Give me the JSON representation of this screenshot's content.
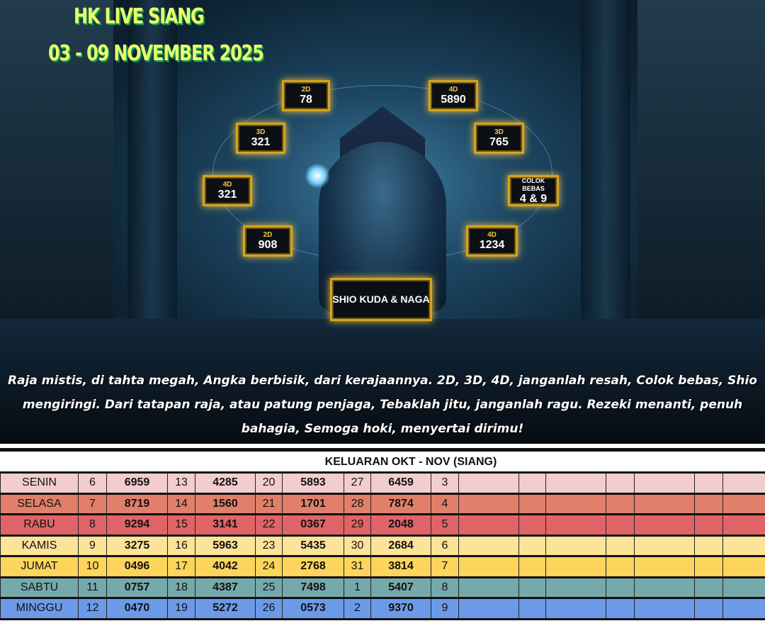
{
  "poster": {
    "title": "HK LIVE SIANG",
    "date_range": "03 - 09 NOVEMBER 2025",
    "predictions": [
      {
        "label": "2D",
        "value": "78"
      },
      {
        "label": "4D",
        "value": "5890"
      },
      {
        "label": "3D",
        "value": "321"
      },
      {
        "label": "3D",
        "value": "765"
      },
      {
        "label": "4D",
        "value": "321"
      },
      {
        "label": "COLOK BEBAS",
        "value": "4 & 9"
      },
      {
        "label": "2D",
        "value": "908"
      },
      {
        "label": "4D",
        "value": "1234"
      }
    ],
    "shio": "SHIO KUDA & NAGA",
    "caption": "Raja mistis, di tahta megah, Angka berbisik, dari kerajaannya. 2D, 3D, 4D, janganlah resah, Colok bebas, Shio mengiringi. Dari tatapan raja, atau patung penjaga, Tebaklah jitu, janganlah ragu. Rezeki menanti, penuh bahagia, Semoga hoki, menyertai dirimu!"
  },
  "table": {
    "title": "KELUARAN OKT - NOV (SIANG)",
    "rows": [
      {
        "day": "SENIN",
        "color": "#f2cdd0",
        "cells": [
          "6",
          "6959",
          "13",
          "4285",
          "20",
          "5893",
          "27",
          "6459",
          "3"
        ]
      },
      {
        "day": "SELASA",
        "color": "#e27f6a",
        "cells": [
          "7",
          "8719",
          "14",
          "1560",
          "21",
          "1701",
          "28",
          "7874",
          "4"
        ]
      },
      {
        "day": "RABU",
        "color": "#e06467",
        "cells": [
          "8",
          "9294",
          "15",
          "3141",
          "22",
          "0367",
          "29",
          "2048",
          "5"
        ]
      },
      {
        "day": "KAMIS",
        "color": "#fde39a",
        "cells": [
          "9",
          "3275",
          "16",
          "5963",
          "23",
          "5435",
          "30",
          "2684",
          "6"
        ]
      },
      {
        "day": "JUMAT",
        "color": "#fdd45c",
        "cells": [
          "10",
          "0496",
          "17",
          "4042",
          "24",
          "2768",
          "31",
          "3814",
          "7"
        ]
      },
      {
        "day": "SABTU",
        "color": "#76a9ab",
        "cells": [
          "11",
          "0757",
          "18",
          "4387",
          "25",
          "7498",
          "1",
          "5407",
          "8"
        ]
      },
      {
        "day": "MINGGU",
        "color": "#6d9ae8",
        "cells": [
          "12",
          "0470",
          "19",
          "5272",
          "26",
          "0573",
          "2",
          "9370",
          "9"
        ]
      }
    ]
  }
}
